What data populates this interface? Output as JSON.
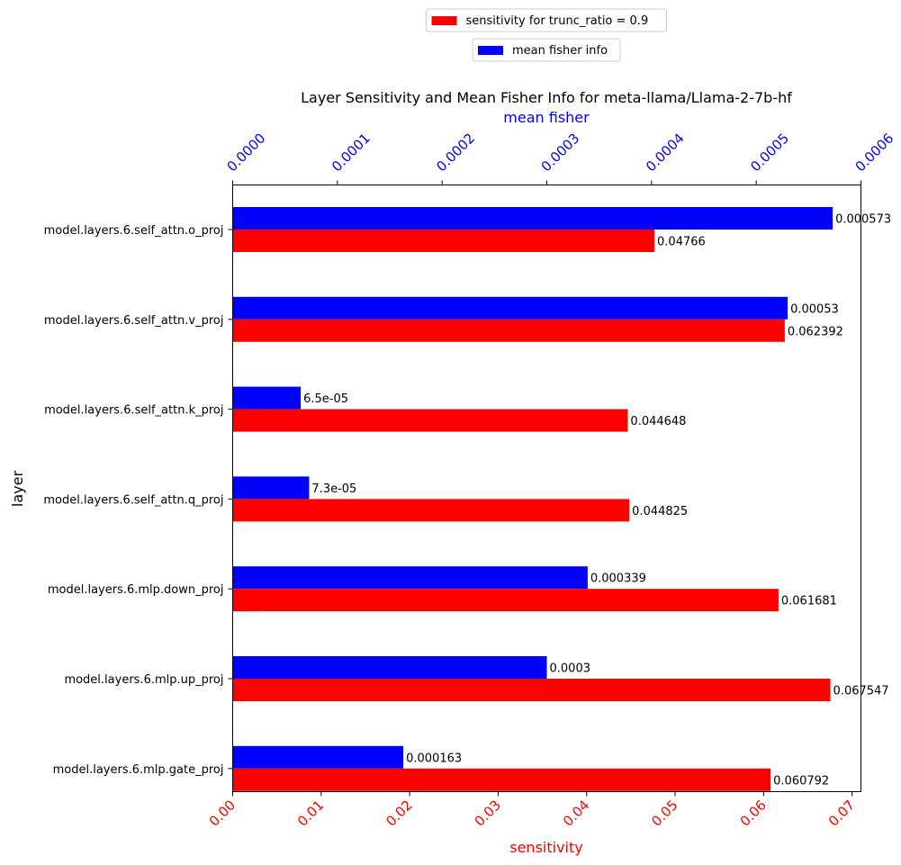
{
  "chart_data": {
    "type": "bar",
    "orientation": "horizontal",
    "title": "Layer Sensitivity and Mean Fisher Info for meta-llama/Llama-2-7b-hf",
    "ylabel": "layer",
    "categories": [
      "model.layers.6.self_attn.o_proj",
      "model.layers.6.self_attn.v_proj",
      "model.layers.6.self_attn.k_proj",
      "model.layers.6.self_attn.q_proj",
      "model.layers.6.mlp.down_proj",
      "model.layers.6.mlp.up_proj",
      "model.layers.6.mlp.gate_proj"
    ],
    "series": [
      {
        "name": "sensitivity for trunc_ratio = 0.9",
        "axis": "bottom",
        "color": "#ff0000",
        "values": [
          0.04766,
          0.062392,
          0.044648,
          0.044825,
          0.061681,
          0.067547,
          0.060792
        ],
        "labels": [
          "0.04766",
          "0.062392",
          "0.044648",
          "0.044825",
          "0.061681",
          "0.067547",
          "0.060792"
        ]
      },
      {
        "name": "mean fisher info",
        "axis": "top",
        "color": "#0000ff",
        "values": [
          0.000573,
          0.00053,
          6.5e-05,
          7.3e-05,
          0.000339,
          0.0003,
          0.000163
        ],
        "labels": [
          "0.000573",
          "0.00053",
          "6.5e-05",
          "7.3e-05",
          "0.000339",
          "0.0003",
          "0.000163"
        ]
      }
    ],
    "x_bottom": {
      "label": "sensitivity",
      "color": "#ff0000",
      "range": [
        0,
        0.071
      ],
      "ticks": [
        0,
        0.01,
        0.02,
        0.03,
        0.04,
        0.05,
        0.06,
        0.07
      ],
      "tick_labels": [
        "0.00",
        "0.01",
        "0.02",
        "0.03",
        "0.04",
        "0.05",
        "0.06",
        "0.07"
      ]
    },
    "x_top": {
      "label": "mean fisher",
      "color": "#0000ff",
      "range": [
        0,
        0.0006
      ],
      "ticks": [
        0,
        0.0001,
        0.0002,
        0.0003,
        0.0004,
        0.0005,
        0.0006
      ],
      "tick_labels": [
        "0.0000",
        "0.0001",
        "0.0002",
        "0.0003",
        "0.0004",
        "0.0005",
        "0.0006"
      ]
    },
    "legend_placement": "top-center",
    "grid": false
  }
}
